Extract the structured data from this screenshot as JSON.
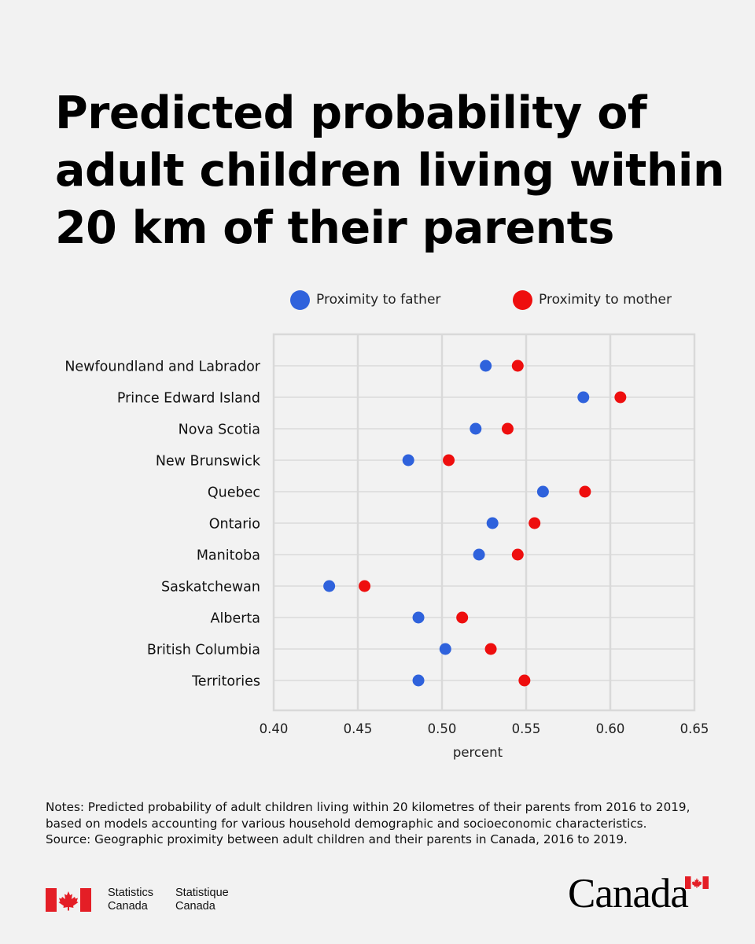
{
  "title_lines": [
    "Predicted probability of",
    "adult children living within",
    "20 km of their parents"
  ],
  "legend": {
    "father": "Proximity to father",
    "mother": "Proximity to mother"
  },
  "colors": {
    "father": "#2f62dc",
    "mother": "#ee0e0e",
    "background": "#f2f2f2",
    "grid": "#d9d9d9",
    "flag_red": "#e41e26"
  },
  "chart_data": {
    "type": "scatter",
    "title": "Predicted probability of adult children living within 20 km of their parents",
    "xlabel": "percent",
    "ylabel": "",
    "xlim": [
      0.4,
      0.65
    ],
    "xticks": [
      "0.40",
      "0.45",
      "0.50",
      "0.55",
      "0.60",
      "0.65"
    ],
    "xtick_values": [
      0.4,
      0.45,
      0.5,
      0.55,
      0.6,
      0.65
    ],
    "grid": true,
    "legend_position": "top",
    "categories": [
      "Newfoundland and Labrador",
      "Prince Edward Island",
      "Nova Scotia",
      "New Brunswick",
      "Quebec",
      "Ontario",
      "Manitoba",
      "Saskatchewan",
      "Alberta",
      "British Columbia",
      "Territories"
    ],
    "series": [
      {
        "name": "Proximity to father",
        "color": "#2f62dc",
        "values": [
          0.526,
          0.584,
          0.52,
          0.48,
          0.56,
          0.53,
          0.522,
          0.433,
          0.486,
          0.502,
          0.486
        ]
      },
      {
        "name": "Proximity to mother",
        "color": "#ee0e0e",
        "values": [
          0.545,
          0.606,
          0.539,
          0.504,
          0.585,
          0.555,
          0.545,
          0.454,
          0.512,
          0.529,
          0.549
        ]
      }
    ]
  },
  "notes": {
    "line1": "Notes: Predicted probability of adult children living within 20 kilometres of their parents from 2016 to 2019,",
    "line2": "based on models accounting for various household demographic and socioeconomic characteristics.",
    "line3": "Source: Geographic proximity between adult children and their parents in Canada, 2016 to 2019."
  },
  "footer": {
    "statcan_en_line1": "Statistics",
    "statcan_en_line2": "Canada",
    "statcan_fr_line1": "Statistique",
    "statcan_fr_line2": "Canada",
    "wordmark": "Canada"
  }
}
